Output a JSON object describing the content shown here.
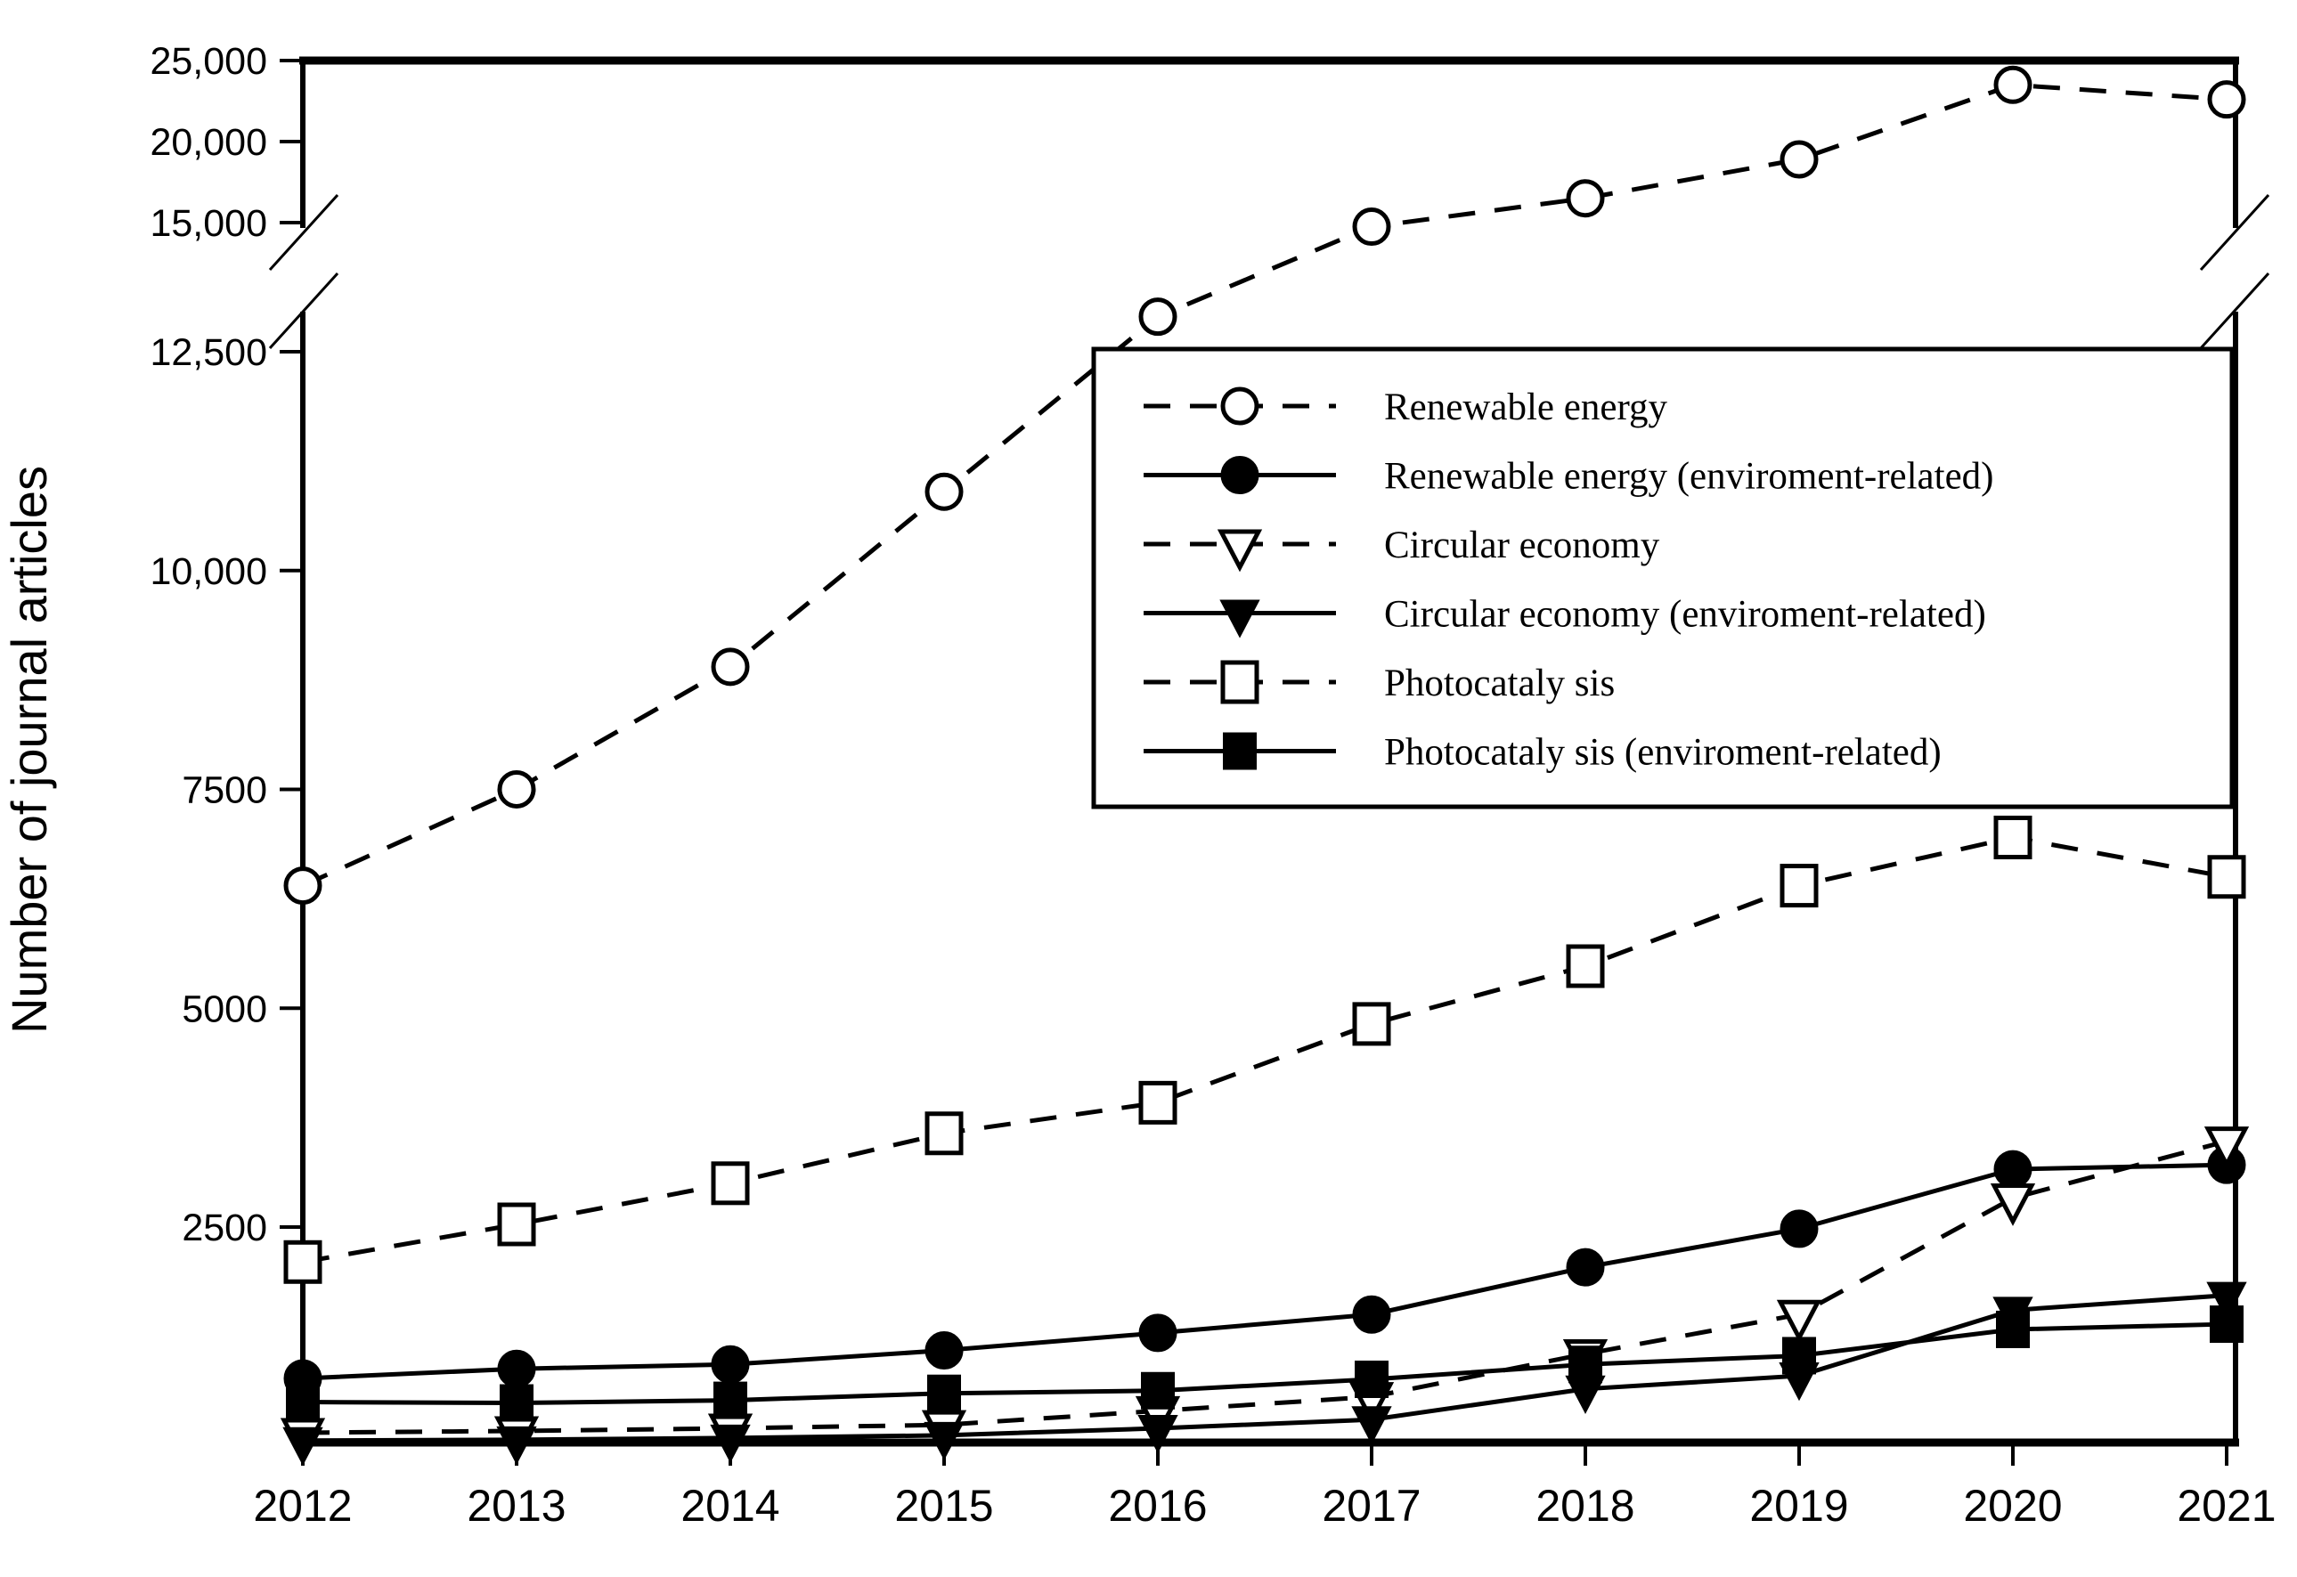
{
  "figure": {
    "description": "Line chart of number of journal articles per year (2012-2021) for six research-topic series, with a broken y-axis",
    "background_color": "#ffffff",
    "ink_color": "#000000"
  },
  "y_axis": {
    "title": "Number of journal articles",
    "ticks": [
      {
        "label": "25,000",
        "value": 25000
      },
      {
        "label": "20,000",
        "value": 20000
      },
      {
        "label": "15,000",
        "value": 15000
      },
      {
        "label": "12,500",
        "value": 12500
      },
      {
        "label": "10,000",
        "value": 10000
      },
      {
        "label": "7500",
        "value": 7500
      },
      {
        "label": "5000",
        "value": 5000
      },
      {
        "label": "2500",
        "value": 2500
      }
    ],
    "has_axis_break": true
  },
  "x_axis": {
    "tick_labels": [
      "2012",
      "2013",
      "2014",
      "2015",
      "2016",
      "2017",
      "2018",
      "2019",
      "2020",
      "2021"
    ]
  },
  "chart_data": {
    "type": "line",
    "title": "",
    "xlabel": "",
    "ylabel": "Number of journal articles",
    "grid": false,
    "legend_position": "boxed, upper middle-right inside plot",
    "x": [
      2012,
      2013,
      2014,
      2015,
      2016,
      2017,
      2018,
      2019,
      2020,
      2021
    ],
    "broken_y_axis": {
      "lower_panel_range": [
        0,
        13100
      ],
      "upper_panel_range": [
        14400,
        25000
      ],
      "lower_panel_ticks": [
        2500,
        5000,
        7500,
        10000,
        12500
      ],
      "upper_panel_ticks": [
        15000,
        20000,
        25000
      ]
    },
    "series": [
      {
        "name": "Renewable energy",
        "marker": "circle-open",
        "line_style": "dashed",
        "color": "#000000",
        "values": [
          6400,
          7500,
          8900,
          10900,
          12900,
          14750,
          16500,
          18900,
          23500,
          22600
        ]
      },
      {
        "name": "Renewable energy (enviroment-related)",
        "marker": "circle-filled",
        "line_style": "solid",
        "color": "#000000",
        "values": [
          770,
          880,
          930,
          1090,
          1290,
          1500,
          2040,
          2480,
          3160,
          3210
        ]
      },
      {
        "name": "Circular economy",
        "marker": "triangle-open",
        "line_style": "dashed",
        "color": "#000000",
        "values": [
          150,
          170,
          200,
          240,
          400,
          560,
          1050,
          1500,
          2830,
          3480
        ]
      },
      {
        "name": "Circular economy (enviroment-related)",
        "marker": "triangle-filled",
        "line_style": "solid",
        "color": "#000000",
        "values": [
          60,
          70,
          90,
          120,
          200,
          300,
          650,
          800,
          1550,
          1720
        ]
      },
      {
        "name": "Photocataly sis",
        "marker": "square-open",
        "line_style": "dashed",
        "color": "#000000",
        "values": [
          2100,
          2530,
          3000,
          3570,
          3920,
          4820,
          5480,
          6400,
          6950,
          6500
        ]
      },
      {
        "name": "Photocataly sis (enviroment-related)",
        "marker": "square-filled",
        "line_style": "solid",
        "color": "#000000",
        "values": [
          500,
          490,
          520,
          600,
          630,
          760,
          930,
          1030,
          1330,
          1390
        ]
      }
    ]
  }
}
